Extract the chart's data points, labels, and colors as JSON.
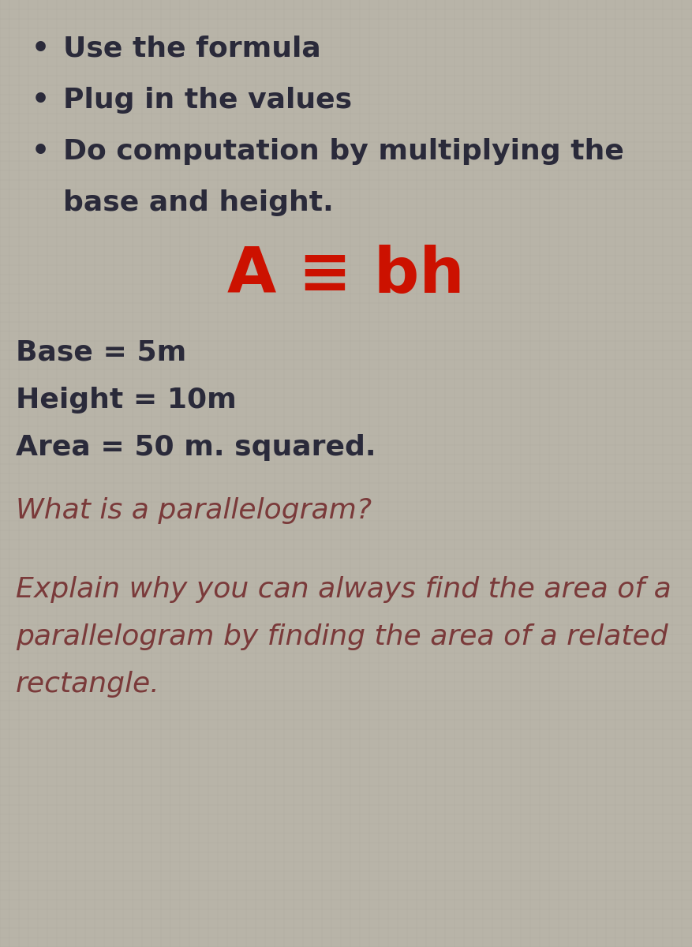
{
  "background_color": "#b8b4a8",
  "bullet_points_line1": [
    "Use the formula",
    "Plug in the values",
    "Do computation by multiplying the"
  ],
  "bullet_point_line2": "base and height.",
  "formula": "A ≡ bh",
  "formula_color": "#cc1100",
  "values_lines": [
    "Base = 5m",
    "Height = 10m",
    "Area = 50 m. squared."
  ],
  "values_color": "#2a2a3a",
  "question1": "What is a parallelogram?",
  "question2_lines": [
    "Explain why you can always find the area of a",
    "parallelogram by finding the area of a related",
    "rectangle."
  ],
  "questions_color": "#7a3a3a",
  "bullet_color": "#2a2a3a",
  "bullet_fontsize": 26,
  "formula_fontsize": 58,
  "values_fontsize": 26,
  "question_fontsize": 26,
  "grid_color": "#a8a49a"
}
